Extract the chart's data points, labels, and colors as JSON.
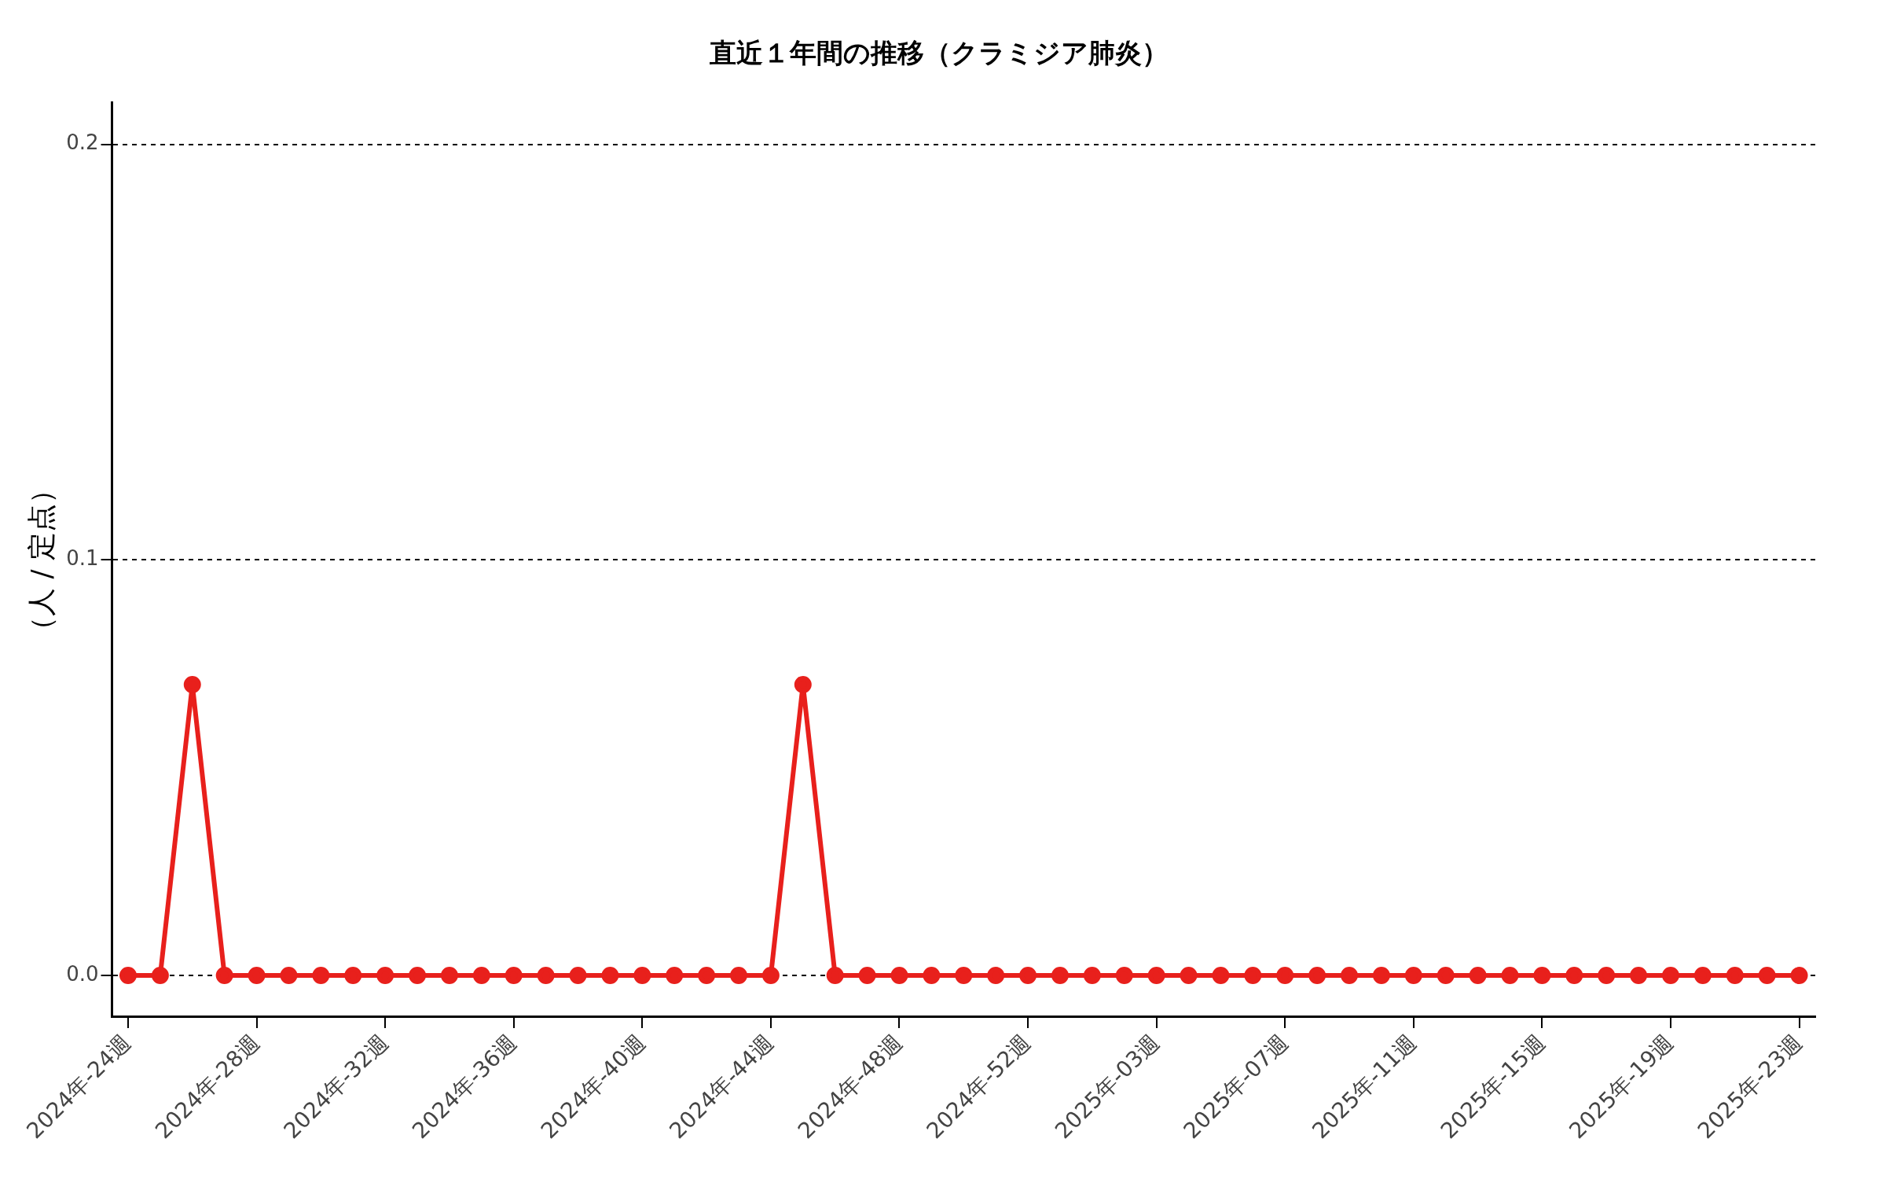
{
  "chart_data": {
    "type": "line",
    "title": "直近１年間の推移（クラミジア肺炎）",
    "ylabel": "（人 / 定点）",
    "categories": [
      "2024年-24週",
      null,
      null,
      null,
      "2024年-28週",
      null,
      null,
      null,
      "2024年-32週",
      null,
      null,
      null,
      "2024年-36週",
      null,
      null,
      null,
      "2024年-40週",
      null,
      null,
      null,
      "2024年-44週",
      null,
      null,
      null,
      "2024年-48週",
      null,
      null,
      null,
      "2024年-52週",
      null,
      null,
      null,
      "2025年-03週",
      null,
      null,
      null,
      "2025年-07週",
      null,
      null,
      null,
      "2025年-11週",
      null,
      null,
      null,
      "2025年-15週",
      null,
      null,
      null,
      "2025年-19週",
      null,
      null,
      null,
      "2025年-23週"
    ],
    "series": [
      {
        "color": "#e8201c",
        "values": [
          0,
          0,
          0.07,
          0,
          0,
          0,
          0,
          0,
          0,
          0,
          0,
          0,
          0,
          0,
          0,
          0,
          0,
          0,
          0,
          0,
          0,
          0.07,
          0,
          0,
          0,
          0,
          0,
          0,
          0,
          0,
          0,
          0,
          0,
          0,
          0,
          0,
          0,
          0,
          0,
          0,
          0,
          0,
          0,
          0,
          0,
          0,
          0,
          0,
          0,
          0,
          0,
          0,
          0
        ]
      }
    ],
    "ylim": [
      -0.01,
      0.21
    ],
    "yticks": [
      {
        "value": 0,
        "label": "0.0"
      },
      0.1,
      0.2
    ],
    "grid": "y",
    "marker": "circle",
    "line_style": "solid"
  }
}
